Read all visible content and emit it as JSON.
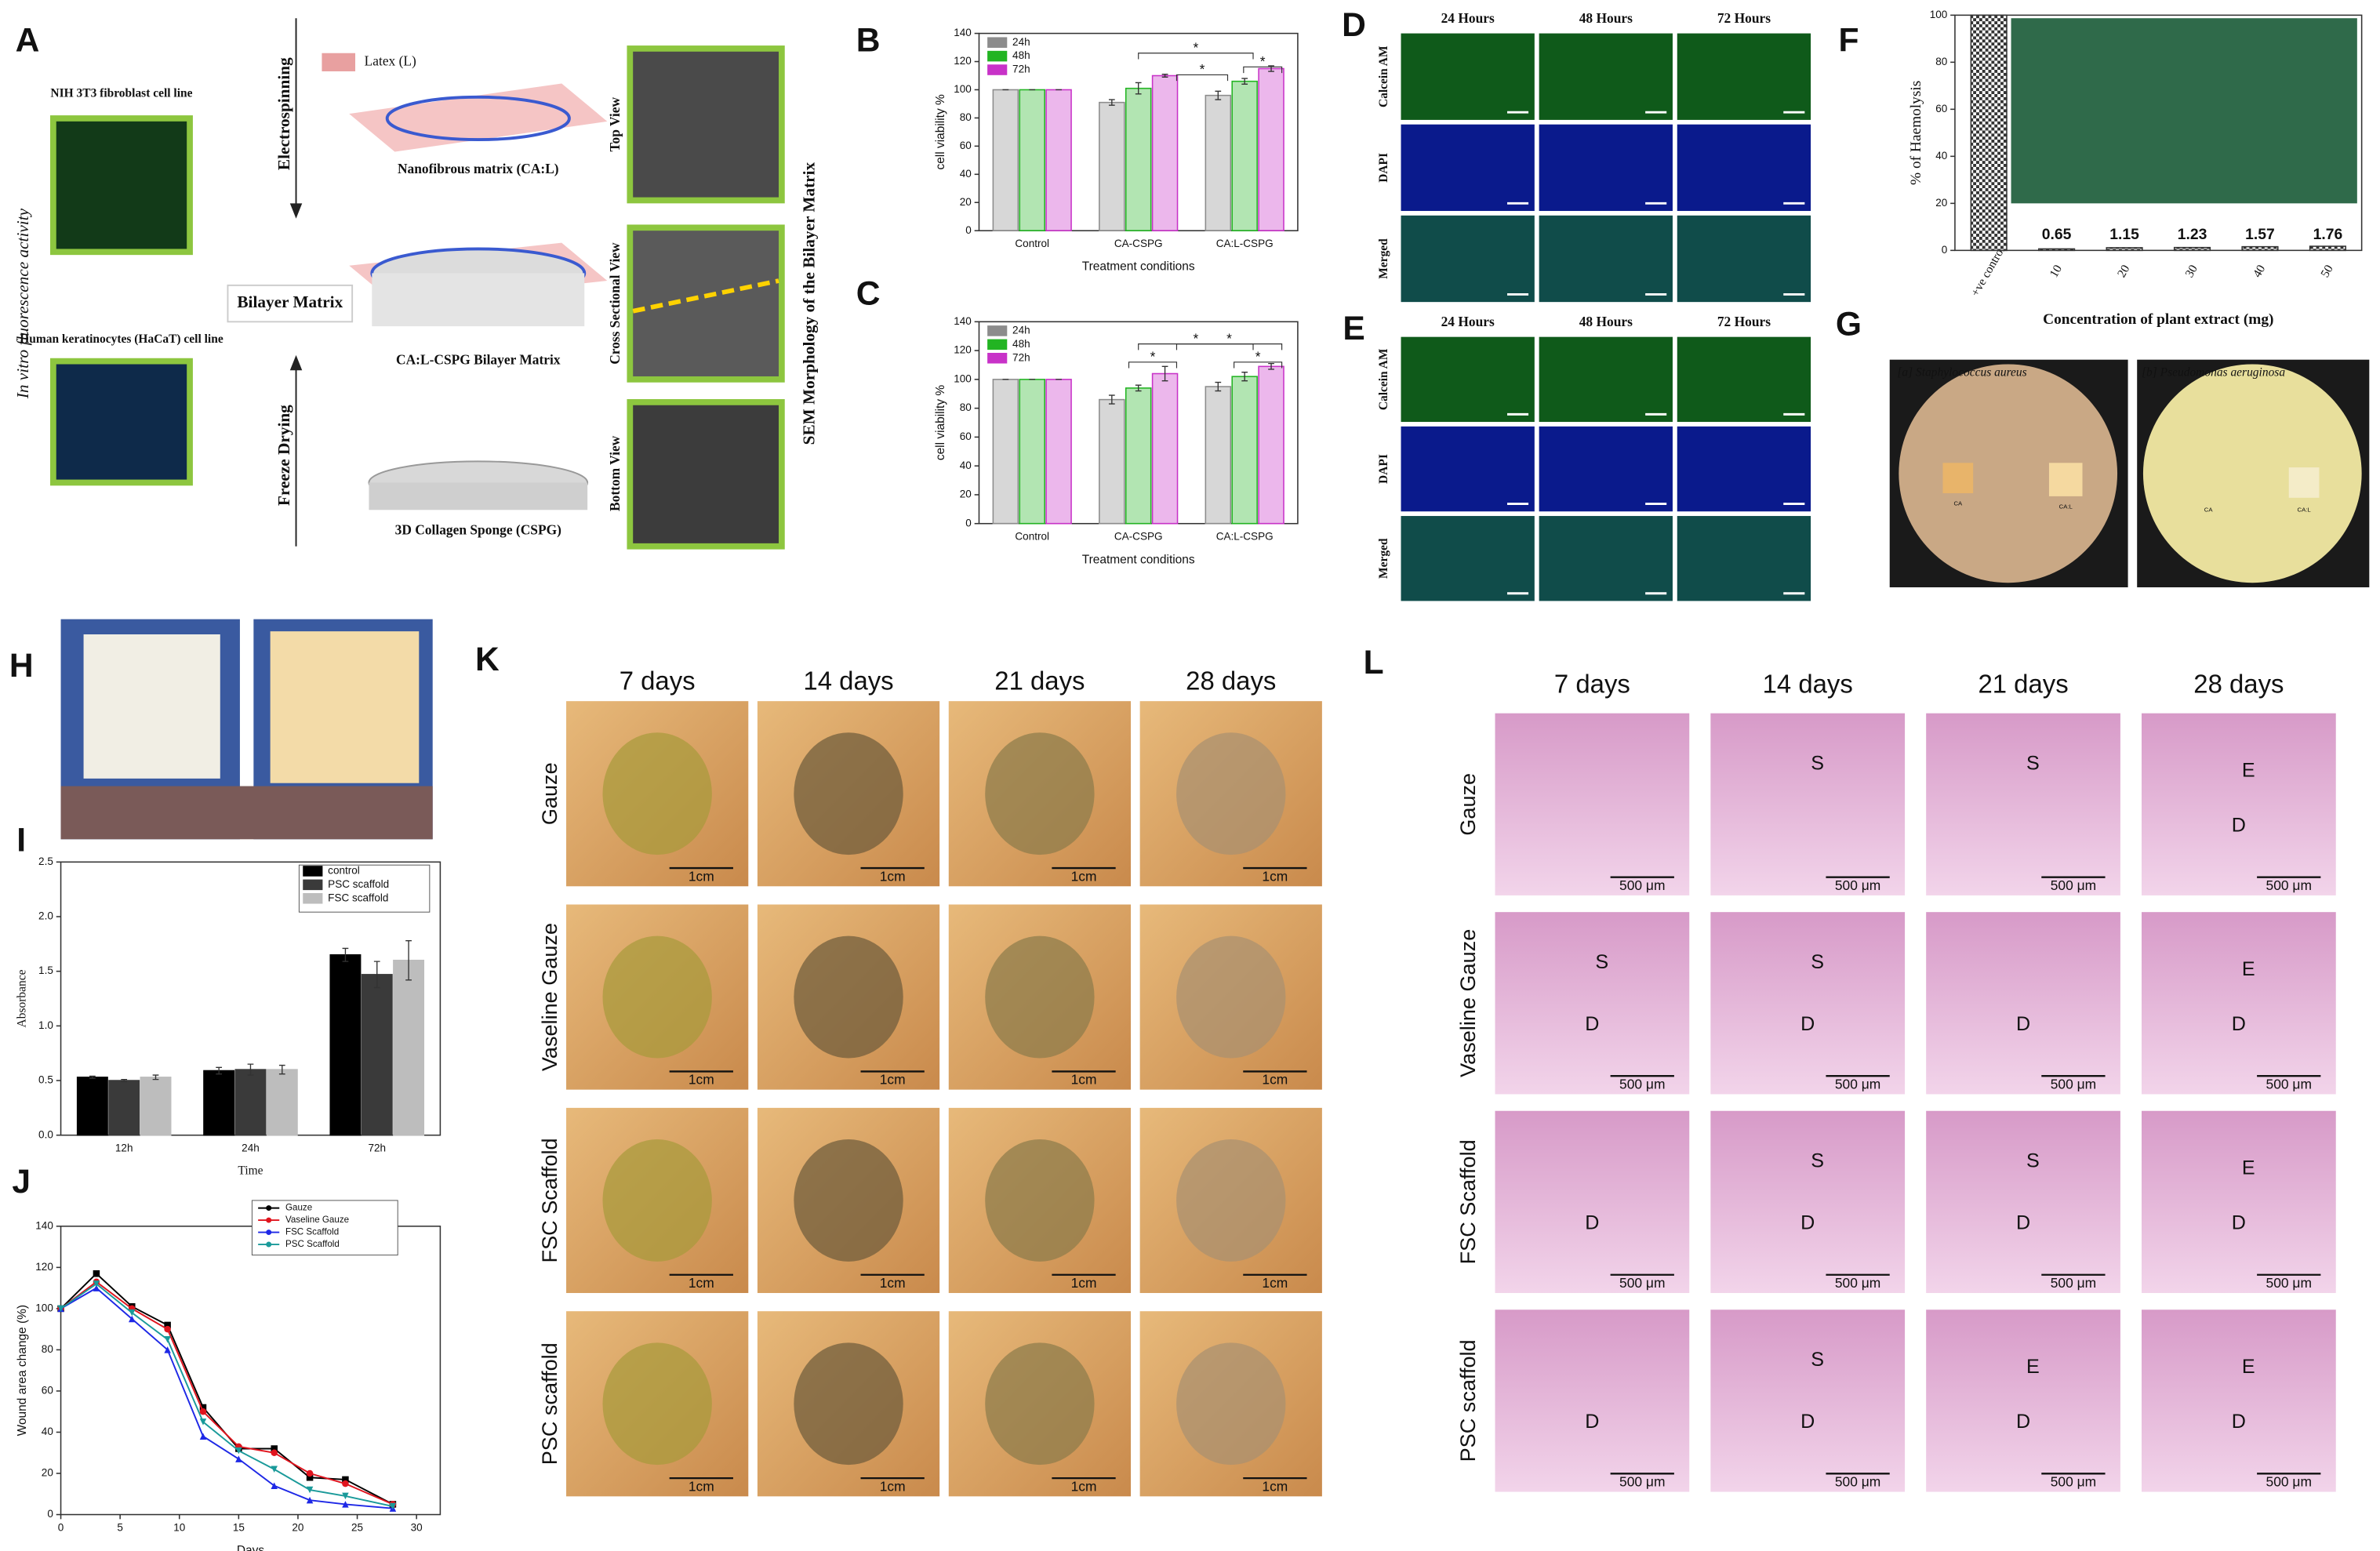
{
  "panels": {
    "A": {
      "letter": "A",
      "side_label": "In vitro fluorescence activity",
      "fibroblast": "NIH 3T3 fibroblast cell line",
      "keratinocyte": "Human keratinocytes (HaCaT) cell line",
      "electrospinning": "Electrospinning",
      "latex": "Latex (L)",
      "nanofibrous": "Nanofibrous matrix (CA:L)",
      "bilayer": "Bilayer Matrix",
      "bilayer_matrix": "CA:L-CSPG Bilayer Matrix",
      "freeze_drying": "Freeze Drying",
      "sponge": "3D Collagen Sponge (CSPG)",
      "views": [
        "Top View",
        "Cross Sectional View",
        "Bottom View"
      ],
      "sem": "SEM Morphology of the Bilayer Matrix"
    },
    "D": {
      "letter": "D",
      "columns": [
        "24 Hours",
        "48 Hours",
        "72 Hours"
      ],
      "rows": [
        "Calcein AM",
        "DAPI",
        "Merged"
      ]
    },
    "E": {
      "letter": "E",
      "columns": [
        "24 Hours",
        "48 Hours",
        "72 Hours"
      ],
      "rows": [
        "Calcein AM",
        "DAPI",
        "Merged"
      ]
    },
    "G": {
      "letter": "G",
      "plates": [
        "[a] Staphylococcus aureus",
        "[b] Pseudomonas aeruginosa"
      ],
      "sample_labels": [
        "CA",
        "CA:L"
      ]
    },
    "H": {
      "letter": "H"
    },
    "K": {
      "letter": "K",
      "columns": [
        "7 days",
        "14 days",
        "21 days",
        "28 days"
      ],
      "rows": [
        "Gauze",
        "Vaseline Gauze",
        "FSC Scaffold",
        "PSC scaffold"
      ],
      "scale": "1cm"
    },
    "L": {
      "letter": "L",
      "columns": [
        "7 days",
        "14 days",
        "21 days",
        "28 days"
      ],
      "rows": [
        "Gauze",
        "Vaseline Gauze",
        "FSC Scaffold",
        "PSC scaffold"
      ],
      "scale": "500 μm",
      "cell_labels": [
        [
          [],
          [
            "S"
          ],
          [
            "S"
          ],
          [
            "E",
            "D"
          ]
        ],
        [
          [
            "S",
            "D"
          ],
          [
            "S",
            "D"
          ],
          [
            "D"
          ],
          [
            "E",
            "D"
          ]
        ],
        [
          [
            "D"
          ],
          [
            "S",
            "D"
          ],
          [
            "S",
            "D"
          ],
          [
            "E",
            "D"
          ]
        ],
        [
          [
            "D"
          ],
          [
            "S",
            "D"
          ],
          [
            "E",
            "D"
          ],
          [
            "E",
            "D"
          ]
        ]
      ]
    }
  },
  "chart_data": [
    {
      "type": "bar",
      "label": "B",
      "ylabel": "cell viability %",
      "xlabel": "Treatment conditions",
      "categories": [
        "Control",
        "CA-CSPG",
        "CA:L-CSPG"
      ],
      "series": [
        {
          "name": "24h",
          "color": "#8c8c8c",
          "values": [
            100,
            91,
            96
          ],
          "errors": [
            0,
            2,
            3
          ]
        },
        {
          "name": "48h",
          "color": "#22b422",
          "values": [
            100,
            101,
            106
          ],
          "errors": [
            0,
            4,
            2
          ]
        },
        {
          "name": "72h",
          "color": "#c832c8",
          "values": [
            100,
            110,
            115
          ],
          "errors": [
            0,
            1,
            2
          ]
        }
      ],
      "ylim": [
        0,
        140
      ],
      "yticks": [
        0,
        20,
        40,
        60,
        80,
        100,
        120,
        140
      ],
      "legend": "upper left",
      "annotations": [
        "*",
        "*",
        "*"
      ]
    },
    {
      "type": "bar",
      "label": "C",
      "ylabel": "cell viability %",
      "xlabel": "Treatment conditions",
      "categories": [
        "Control",
        "CA-CSPG",
        "CA:L-CSPG"
      ],
      "series": [
        {
          "name": "24h",
          "color": "#8c8c8c",
          "values": [
            100,
            86,
            95
          ],
          "errors": [
            0,
            3,
            3
          ]
        },
        {
          "name": "48h",
          "color": "#22b422",
          "values": [
            100,
            94,
            102
          ],
          "errors": [
            0,
            2,
            3
          ]
        },
        {
          "name": "72h",
          "color": "#c832c8",
          "values": [
            100,
            104,
            109
          ],
          "errors": [
            0,
            5,
            2
          ]
        }
      ],
      "ylim": [
        0,
        140
      ],
      "yticks": [
        0,
        20,
        40,
        60,
        80,
        100,
        120,
        140
      ],
      "legend": "upper left",
      "annotations": [
        "*",
        "*",
        "*",
        "*"
      ]
    },
    {
      "type": "bar",
      "label": "F",
      "ylabel": "% of Haemolysis",
      "xlabel": "Concentration of plant extract (mg)",
      "categories": [
        "+ve control",
        "10",
        "20",
        "30",
        "40",
        "50"
      ],
      "values": [
        100,
        0.65,
        1.15,
        1.23,
        1.57,
        1.76
      ],
      "color": "#333333",
      "ylim": [
        0,
        100
      ],
      "yticks": [
        0,
        20,
        40,
        60,
        80,
        100
      ]
    },
    {
      "type": "bar",
      "label": "I",
      "ylabel": "Absorbance",
      "xlabel": "Time",
      "categories": [
        "12h",
        "24h",
        "72h"
      ],
      "series": [
        {
          "name": "control",
          "color": "#000000",
          "values": [
            0.53,
            0.59,
            1.65
          ],
          "errors": [
            0.01,
            0.03,
            0.06
          ]
        },
        {
          "name": "PSC scaffold",
          "color": "#3a3a3a",
          "values": [
            0.5,
            0.6,
            1.47
          ],
          "errors": [
            0.01,
            0.05,
            0.12
          ]
        },
        {
          "name": "FSC scaffold",
          "color": "#bdbdbd",
          "values": [
            0.53,
            0.6,
            1.6
          ],
          "errors": [
            0.02,
            0.04,
            0.18
          ]
        }
      ],
      "ylim": [
        0,
        2.5
      ],
      "yticks": [
        {
          "value": 0,
          "label": "0.0"
        },
        0.5,
        {
          "value": 1,
          "label": "1.0"
        },
        1.5,
        {
          "value": 2,
          "label": "2.0"
        },
        2.5
      ],
      "legend": "upper right"
    },
    {
      "type": "line",
      "label": "J",
      "ylabel": "Wound area change (%)",
      "xlabel": "Days",
      "x": [
        0,
        3,
        6,
        9,
        12,
        15,
        18,
        21,
        24,
        28
      ],
      "series": [
        {
          "name": "Gauze",
          "color": "#000000",
          "values": [
            100,
            117,
            101,
            92,
            52,
            32,
            32,
            18,
            17,
            5
          ]
        },
        {
          "name": "Vaseline Gauze",
          "color": "#e0141e",
          "values": [
            100,
            113,
            100,
            90,
            50,
            33,
            30,
            20,
            15,
            5
          ]
        },
        {
          "name": "FSC Scaffold",
          "color": "#1e28e6",
          "values": [
            100,
            110,
            95,
            80,
            38,
            27,
            14,
            7,
            5,
            3
          ]
        },
        {
          "name": "PSC Scaffold",
          "color": "#1a9a9a",
          "values": [
            100,
            112,
            98,
            85,
            45,
            31,
            22,
            12,
            9,
            4
          ]
        }
      ],
      "xlim": [
        0,
        32
      ],
      "xticks": [
        0,
        5,
        10,
        15,
        20,
        25,
        30
      ],
      "ylim": [
        0,
        140
      ],
      "yticks": [
        0,
        20,
        40,
        60,
        80,
        100,
        120,
        140
      ],
      "legend": "upper right"
    }
  ]
}
